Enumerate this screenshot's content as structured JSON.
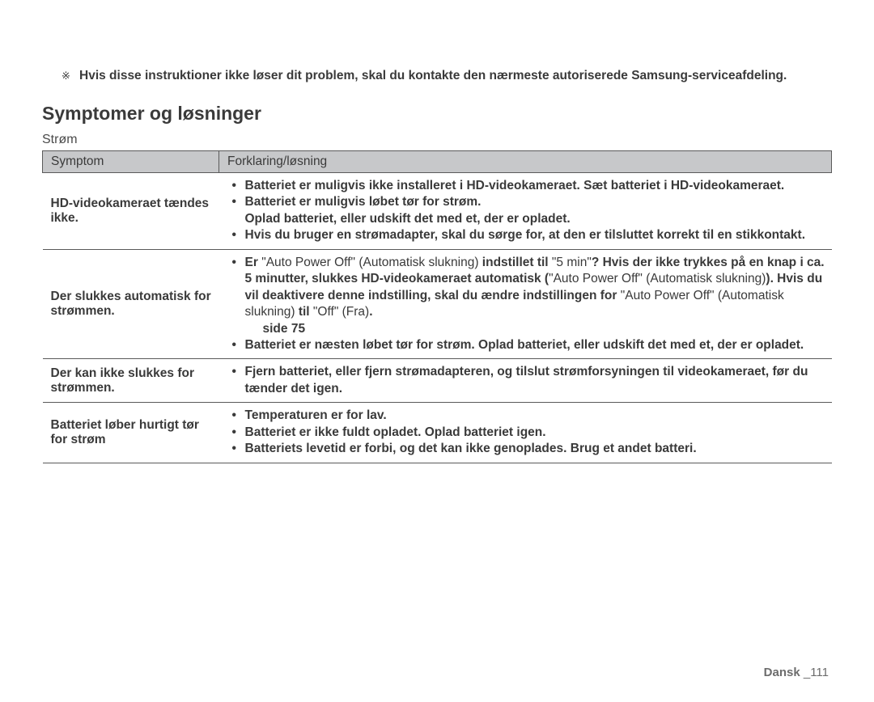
{
  "intro": {
    "mark": "※",
    "text": "Hvis disse instruktioner ikke løser dit problem, skal du kontakte den nærmeste autoriserede Samsung-serviceafdeling."
  },
  "heading": "Symptomer og løsninger",
  "subheading": "Strøm",
  "table": {
    "headers": {
      "col1": "Symptom",
      "col2": "Forklaring/løsning"
    },
    "rows": [
      {
        "symptom": "HD-videokameraet tændes ikke.",
        "items": [
          {
            "text": "Batteriet er muligvis ikke installeret i HD-videokameraet. Sæt batteriet i HD-videokameraet."
          },
          {
            "line1": "Batteriet er muligvis løbet tør for strøm.",
            "line2": "Oplad batteriet, eller udskift det med et, der er opladet."
          },
          {
            "text": "Hvis du bruger en strømadapter, skal du sørge for, at den er tilsluttet korrekt til en stikkontakt."
          }
        ]
      },
      {
        "symptom": "Der slukkes automatisk for strømmen.",
        "items": [
          {
            "p1": "Er ",
            "q1": "\"Auto Power Off\" (Automatisk slukning)",
            "p2": " indstillet til ",
            "q2": "\"5 min\"",
            "p3": "? Hvis der ikke trykkes på en knap i ca. 5 minutter, slukkes HD-videokameraet automatisk (",
            "q3": "\"Auto Power Off\" (Automatisk slukning)",
            "p4": "). Hvis du vil deaktivere denne indstilling, skal du ændre indstillingen for ",
            "q4": "\"Auto Power Off\" (Automatisk slukning)",
            "p5": " til ",
            "q5": "\"Off\" (Fra)",
            "p6": ".",
            "pageref": "side 75"
          },
          {
            "text": "Batteriet er næsten løbet tør for strøm. Oplad batteriet, eller udskift det med et, der er opladet."
          }
        ]
      },
      {
        "symptom": "Der kan ikke slukkes for strømmen.",
        "items": [
          {
            "text": "Fjern batteriet, eller fjern strømadapteren, og tilslut strømforsyningen til videokameraet, før du tænder det igen."
          }
        ]
      },
      {
        "symptom": "Batteriet løber hurtigt tør for strøm",
        "items": [
          {
            "text": "Temperaturen er  for lav."
          },
          {
            "text": "Batteriet er ikke fuldt opladet. Oplad batteriet igen."
          },
          {
            "text": "Batteriets levetid er forbi, og det kan ikke genoplades. Brug et andet batteri."
          }
        ]
      }
    ]
  },
  "footer": {
    "lang": "Dansk ",
    "sep": "_",
    "page": "111"
  }
}
